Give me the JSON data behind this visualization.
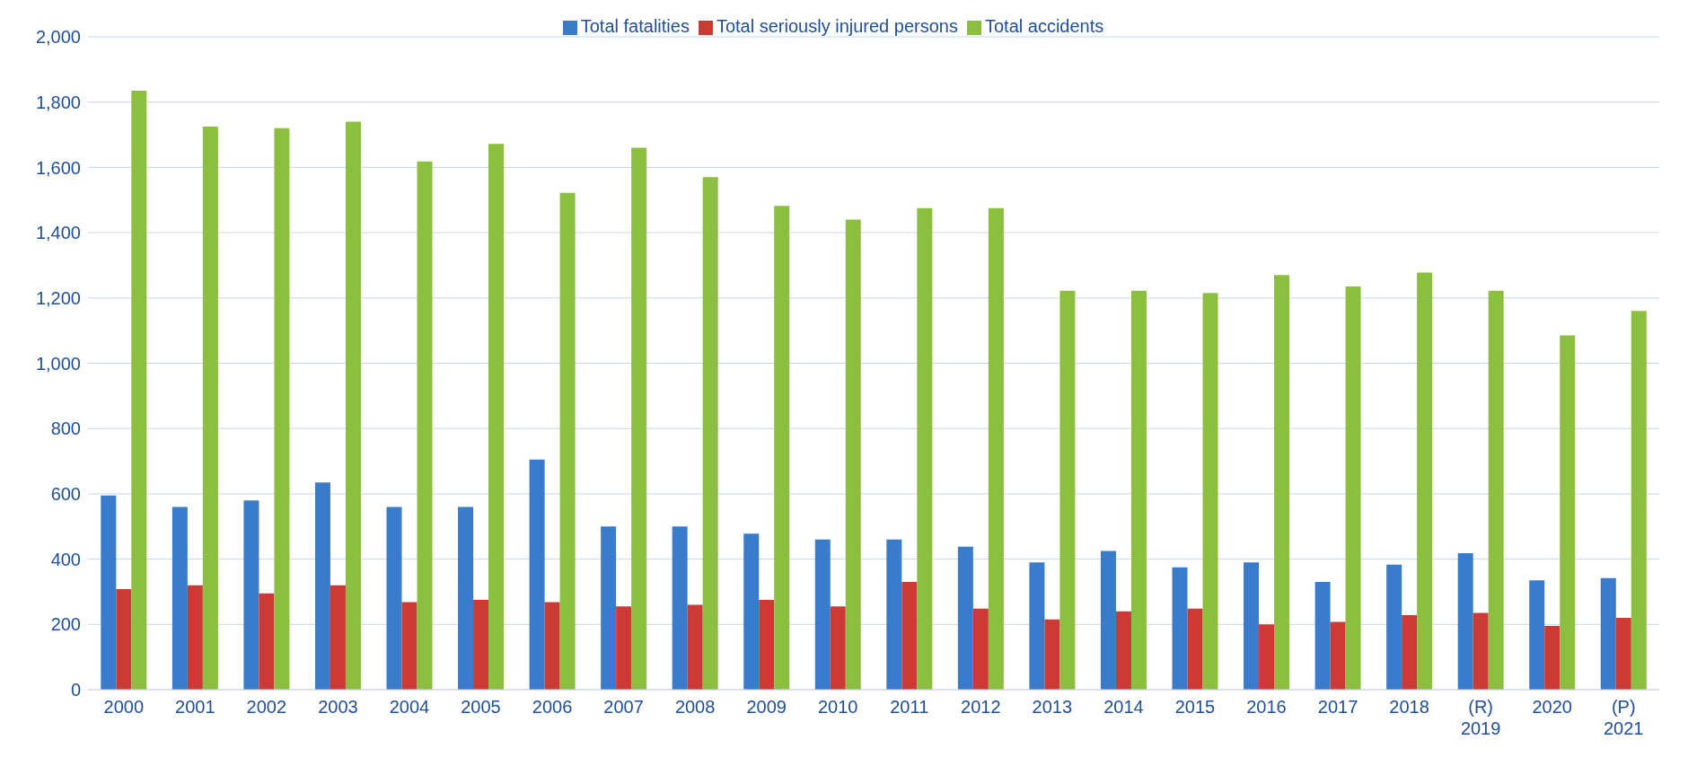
{
  "chart_data": {
    "type": "bar",
    "categories": [
      "2000",
      "2001",
      "2002",
      "2003",
      "2004",
      "2005",
      "2006",
      "2007",
      "2008",
      "2009",
      "2010",
      "2011",
      "2012",
      "2013",
      "2014",
      "2015",
      "2016",
      "2017",
      "2018",
      "(R) 2019",
      "2020",
      "(P) 2021"
    ],
    "series": [
      {
        "name": "Total fatalities",
        "color": "#3b7bcc",
        "values": [
          595,
          560,
          580,
          635,
          560,
          560,
          705,
          500,
          500,
          478,
          460,
          460,
          438,
          390,
          425,
          375,
          390,
          330,
          383,
          418,
          335,
          342
        ]
      },
      {
        "name": "Total seriously injured persons",
        "color": "#cc3a36",
        "values": [
          308,
          320,
          295,
          320,
          268,
          275,
          268,
          255,
          260,
          275,
          255,
          330,
          248,
          215,
          240,
          248,
          200,
          208,
          228,
          235,
          195,
          220
        ]
      },
      {
        "name": "Total accidents",
        "color": "#8cbf3f",
        "values": [
          1835,
          1725,
          1720,
          1740,
          1618,
          1672,
          1522,
          1660,
          1570,
          1482,
          1440,
          1475,
          1475,
          1222,
          1222,
          1215,
          1270,
          1235,
          1278,
          1222,
          1085,
          1160
        ]
      }
    ],
    "ylim": [
      0,
      2000
    ],
    "yticks": [
      0,
      200,
      400,
      600,
      800,
      {
        "value": 1000,
        "label": "1,000"
      },
      {
        "value": 1200,
        "label": "1,200"
      },
      {
        "value": 1400,
        "label": "1,400"
      },
      {
        "value": 1600,
        "label": "1,600"
      },
      {
        "value": 1800,
        "label": "1,800"
      },
      {
        "value": 2000,
        "label": "2,000"
      }
    ],
    "grid": "y",
    "legend": "top"
  }
}
